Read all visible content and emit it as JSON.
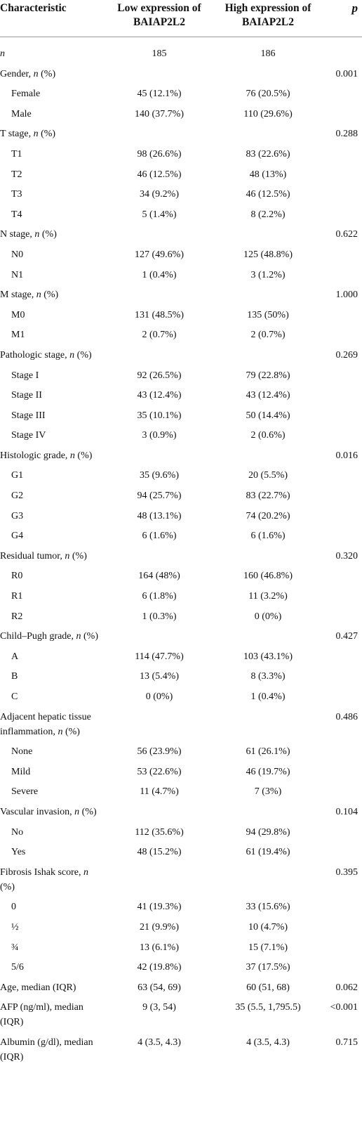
{
  "table": {
    "header": [
      "Characteristic",
      "Low expression of BAIAP2L2",
      "High expression of BAIAP2L2",
      "p"
    ],
    "n_row": {
      "label": "n",
      "low": "185",
      "high": "186"
    },
    "rows": [
      {
        "label": "Gender, n (%)",
        "p": "0.001"
      },
      {
        "label": "Female",
        "low": "45 (12.1%)",
        "high": "76 (20.5%)"
      },
      {
        "label": "Male",
        "low": "140 (37.7%)",
        "high": "110 (29.6%)"
      },
      {
        "label": "T stage, n (%)",
        "p": "0.288"
      },
      {
        "label": "T1",
        "low": "98 (26.6%)",
        "high": "83 (22.6%)"
      },
      {
        "label": "T2",
        "low": "46 (12.5%)",
        "high": "48 (13%)"
      },
      {
        "label": "T3",
        "low": "34 (9.2%)",
        "high": "46 (12.5%)"
      },
      {
        "label": "T4",
        "low": "5 (1.4%)",
        "high": "8 (2.2%)"
      },
      {
        "label": "N stage, n (%)",
        "p": "0.622"
      },
      {
        "label": "N0",
        "low": "127 (49.6%)",
        "high": "125 (48.8%)"
      },
      {
        "label": "N1",
        "low": "1 (0.4%)",
        "high": "3 (1.2%)"
      },
      {
        "label": "M stage, n (%)",
        "p": "1.000"
      },
      {
        "label": "M0",
        "low": "131 (48.5%)",
        "high": "135 (50%)"
      },
      {
        "label": "M1",
        "low": "2 (0.7%)",
        "high": "2 (0.7%)"
      },
      {
        "label": "Pathologic stage, n (%)",
        "p": "0.269"
      },
      {
        "label": "Stage I",
        "low": "92 (26.5%)",
        "high": "79 (22.8%)"
      },
      {
        "label": "Stage II",
        "low": "43 (12.4%)",
        "high": "43 (12.4%)"
      },
      {
        "label": "Stage III",
        "low": "35 (10.1%)",
        "high": "50 (14.4%)"
      },
      {
        "label": "Stage IV",
        "low": "3 (0.9%)",
        "high": "2 (0.6%)"
      },
      {
        "label": "Histologic grade, n (%)",
        "p": "0.016"
      },
      {
        "label": "G1",
        "low": "35 (9.6%)",
        "high": "20 (5.5%)"
      },
      {
        "label": "G2",
        "low": "94 (25.7%)",
        "high": "83 (22.7%)"
      },
      {
        "label": "G3",
        "low": "48 (13.1%)",
        "high": "74 (20.2%)"
      },
      {
        "label": "G4",
        "low": "6 (1.6%)",
        "high": "6 (1.6%)"
      },
      {
        "label": "Residual tumor, n (%)",
        "p": "0.320"
      },
      {
        "label": "R0",
        "low": "164 (48%)",
        "high": "160 (46.8%)"
      },
      {
        "label": "R1",
        "low": "6 (1.8%)",
        "high": "11 (3.2%)"
      },
      {
        "label": "R2",
        "low": "1 (0.3%)",
        "high": "0 (0%)"
      },
      {
        "label": "Child–Pugh grade, n (%)",
        "p": "0.427"
      },
      {
        "label": "A",
        "low": "114 (47.7%)",
        "high": "103 (43.1%)"
      },
      {
        "label": "B",
        "low": "13 (5.4%)",
        "high": "8 (3.3%)"
      },
      {
        "label": "C",
        "low": "0 (0%)",
        "high": "1 (0.4%)"
      },
      {
        "label": "Adjacent hepatic tissue inflammation, n (%)",
        "p": "0.486"
      },
      {
        "label": "None",
        "low": "56 (23.9%)",
        "high": "61 (26.1%)"
      },
      {
        "label": "Mild",
        "low": "53 (22.6%)",
        "high": "46 (19.7%)"
      },
      {
        "label": "Severe",
        "low": "11 (4.7%)",
        "high": "7 (3%)"
      },
      {
        "label": "Vascular invasion, n (%)",
        "p": "0.104"
      },
      {
        "label": "No",
        "low": "112 (35.6%)",
        "high": "94 (29.8%)"
      },
      {
        "label": "Yes",
        "low": "48 (15.2%)",
        "high": "61 (19.4%)"
      },
      {
        "label": "Fibrosis Ishak score, n (%)",
        "p": "0.395"
      },
      {
        "label": "0",
        "low": "41 (19.3%)",
        "high": "33 (15.6%)"
      },
      {
        "label": "½",
        "low": "21 (9.9%)",
        "high": "10 (4.7%)"
      },
      {
        "label": "¾",
        "low": "13 (6.1%)",
        "high": "15 (7.1%)"
      },
      {
        "label": "5/6",
        "low": "42 (19.8%)",
        "high": "37 (17.5%)"
      },
      {
        "label": "Age, median (IQR)",
        "low": "63 (54, 69)",
        "high": "60 (51, 68)",
        "p": "0.062"
      },
      {
        "label": "AFP (ng/ml), median (IQR)",
        "low": "9 (3, 54)",
        "high": "35 (5.5, 1,795.5)",
        "p": "<0.001"
      },
      {
        "label": "Albumin (g/dl), median (IQR)",
        "low": "4 (3.5, 4.3)",
        "high": "4 (3.5, 4.3)",
        "p": "0.715"
      }
    ]
  }
}
